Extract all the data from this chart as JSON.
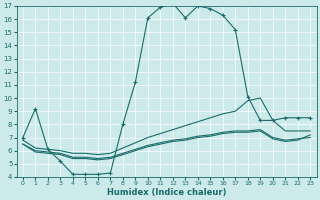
{
  "title": "",
  "xlabel": "Humidex (Indice chaleur)",
  "ylabel": "",
  "bg_color": "#cceaea",
  "line_color": "#1a6b6b",
  "xlim": [
    -0.5,
    23.5
  ],
  "ylim": [
    4,
    17
  ],
  "xticks": [
    0,
    1,
    2,
    3,
    4,
    5,
    6,
    7,
    8,
    9,
    10,
    11,
    12,
    13,
    14,
    15,
    16,
    17,
    18,
    19,
    20,
    21,
    22,
    23
  ],
  "yticks": [
    4,
    5,
    6,
    7,
    8,
    9,
    10,
    11,
    12,
    13,
    14,
    15,
    16,
    17
  ],
  "curve1_x": [
    0,
    1,
    2,
    3,
    4,
    5,
    6,
    7,
    8,
    9,
    10,
    11,
    12,
    13,
    14,
    15,
    16,
    17,
    18,
    19,
    20,
    21,
    22,
    23
  ],
  "curve1_y": [
    7.0,
    9.2,
    6.1,
    5.2,
    4.2,
    4.2,
    4.2,
    4.3,
    8.0,
    11.2,
    16.1,
    16.9,
    17.2,
    16.1,
    17.0,
    16.8,
    16.3,
    15.2,
    10.1,
    8.3,
    8.3,
    8.5,
    8.5,
    8.5
  ],
  "curve2_x": [
    0,
    1,
    2,
    3,
    4,
    5,
    6,
    7,
    8,
    9,
    10,
    11,
    12,
    13,
    14,
    15,
    16,
    17,
    18,
    19,
    20,
    21,
    22,
    23
  ],
  "curve2_y": [
    6.8,
    6.2,
    6.1,
    6.0,
    5.8,
    5.8,
    5.7,
    5.8,
    6.2,
    6.6,
    7.0,
    7.3,
    7.6,
    7.9,
    8.2,
    8.5,
    8.8,
    9.0,
    9.8,
    10.0,
    8.3,
    7.5,
    7.5,
    7.5
  ],
  "curve3_x": [
    0,
    1,
    2,
    3,
    4,
    5,
    6,
    7,
    8,
    9,
    10,
    11,
    12,
    13,
    14,
    15,
    16,
    17,
    18,
    19,
    20,
    21,
    22,
    23
  ],
  "curve3_y": [
    6.5,
    6.0,
    5.9,
    5.8,
    5.5,
    5.5,
    5.4,
    5.5,
    5.8,
    6.1,
    6.4,
    6.6,
    6.8,
    6.9,
    7.1,
    7.2,
    7.4,
    7.5,
    7.5,
    7.6,
    7.0,
    6.8,
    6.9,
    7.0
  ],
  "curve4_x": [
    0,
    1,
    2,
    3,
    4,
    5,
    6,
    7,
    8,
    9,
    10,
    11,
    12,
    13,
    14,
    15,
    16,
    17,
    18,
    19,
    20,
    21,
    22,
    23
  ],
  "curve4_y": [
    6.5,
    5.9,
    5.8,
    5.7,
    5.4,
    5.4,
    5.3,
    5.4,
    5.7,
    6.0,
    6.3,
    6.5,
    6.7,
    6.8,
    7.0,
    7.1,
    7.3,
    7.4,
    7.4,
    7.5,
    6.9,
    6.7,
    6.8,
    7.2
  ]
}
